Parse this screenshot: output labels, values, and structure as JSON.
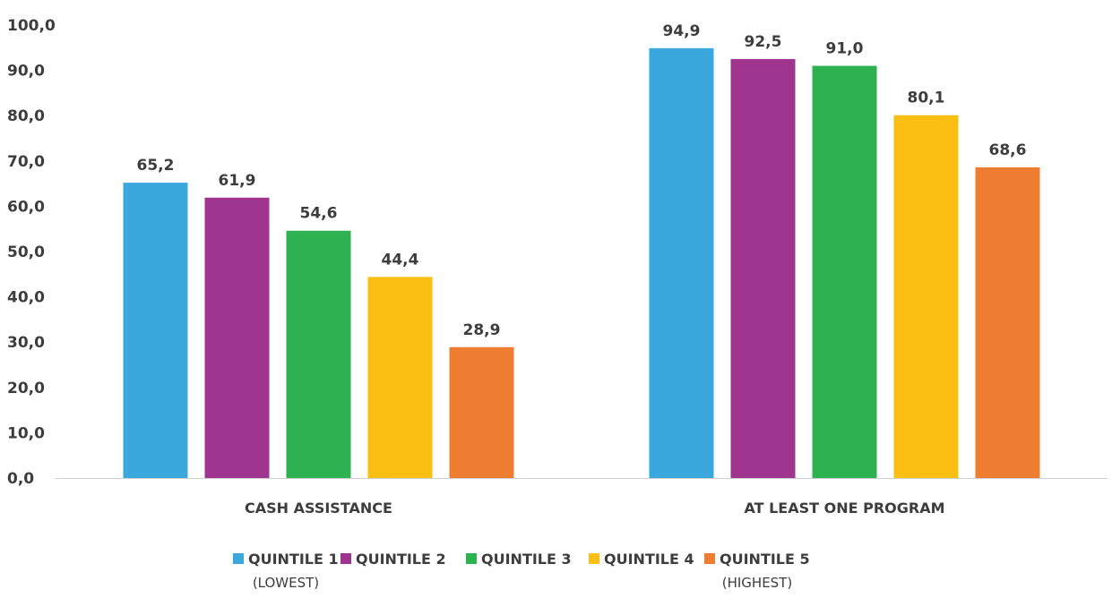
{
  "chart_data": {
    "type": "bar",
    "categories": [
      "CASH ASSISTANCE",
      "AT LEAST ONE PROGRAM"
    ],
    "series": [
      {
        "name": "QUINTILE 1",
        "subname": "(LOWEST)",
        "color": "#3AA8DD",
        "values": [
          65.2,
          94.9
        ],
        "labels": [
          "65,2",
          "94,9"
        ]
      },
      {
        "name": "QUINTILE 2",
        "subname": "",
        "color": "#A03590",
        "values": [
          61.9,
          92.5
        ],
        "labels": [
          "61,9",
          "92,5"
        ]
      },
      {
        "name": "QUINTILE 3",
        "subname": "",
        "color": "#2EB151",
        "values": [
          54.6,
          91.0
        ],
        "labels": [
          "54,6",
          "91,0"
        ]
      },
      {
        "name": "QUINTILE 4",
        "subname": "",
        "color": "#FABF12",
        "values": [
          44.4,
          80.1
        ],
        "labels": [
          "44,4",
          "80,1"
        ]
      },
      {
        "name": "QUINTILE 5",
        "subname": "(HIGHEST)",
        "color": "#EE7D31",
        "values": [
          28.9,
          68.6
        ],
        "labels": [
          "28,9",
          "68,6"
        ]
      }
    ],
    "ylim": [
      0,
      100
    ],
    "yticks": [
      0,
      10,
      20,
      30,
      40,
      50,
      60,
      70,
      80,
      90,
      100
    ],
    "ytick_labels": [
      "0,0",
      "10,0",
      "20,0",
      "30,0",
      "40,0",
      "50,0",
      "60,0",
      "70,0",
      "80,0",
      "90,0",
      "100,0"
    ],
    "title": "",
    "xlabel": "",
    "ylabel": "",
    "grid": false,
    "legend": "bottom"
  }
}
